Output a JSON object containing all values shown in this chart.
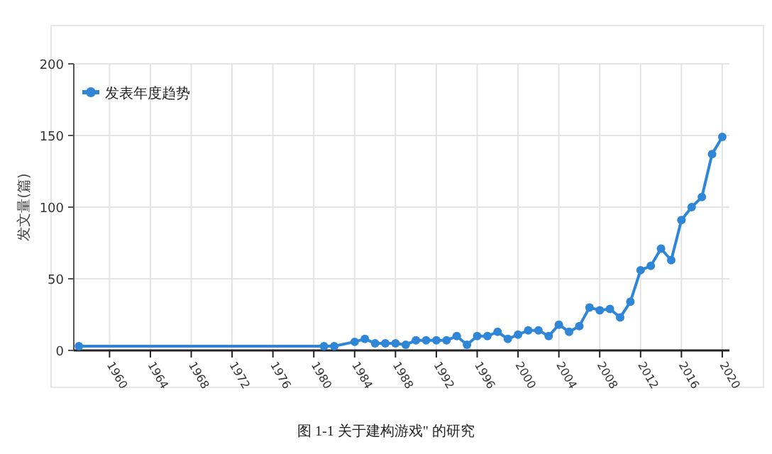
{
  "chart_data": {
    "type": "line",
    "ylabel": "发文量(篇)",
    "annotations": [
      "图 1-1 关于建构游戏\" 的研究"
    ],
    "x": [
      1957,
      1981,
      1982,
      1984,
      1985,
      1986,
      1987,
      1988,
      1989,
      1990,
      1991,
      1992,
      1993,
      1994,
      1995,
      1996,
      1997,
      1998,
      1999,
      2000,
      2001,
      2002,
      2003,
      2004,
      2005,
      2006,
      2007,
      2008,
      2009,
      2010,
      2011,
      2012,
      2013,
      2014,
      2015,
      2016,
      2017,
      2018,
      2019,
      2020
    ],
    "series": [
      {
        "name": "发表年度趋势",
        "color": "#2f86d6",
        "values": [
          3,
          3,
          3,
          6,
          8,
          5,
          5,
          5,
          4,
          7,
          7,
          7,
          7,
          10,
          4,
          10,
          10,
          13,
          8,
          11,
          14,
          14,
          10,
          18,
          13,
          17,
          30,
          28,
          29,
          23,
          34,
          56,
          59,
          71,
          63,
          91,
          100,
          107,
          137,
          149
        ]
      }
    ],
    "xlim": [
      1956.5,
      2020.7
    ],
    "ylim": [
      0,
      200
    ],
    "xticks": [
      1960,
      1964,
      1968,
      1972,
      1976,
      1980,
      1984,
      1988,
      1992,
      1996,
      2000,
      2004,
      2008,
      2012,
      2016,
      2020
    ],
    "yticks": [
      0,
      50,
      100,
      150,
      200
    ],
    "grid": true,
    "legend": "top left",
    "marker": "circle",
    "line_style": "solid"
  }
}
